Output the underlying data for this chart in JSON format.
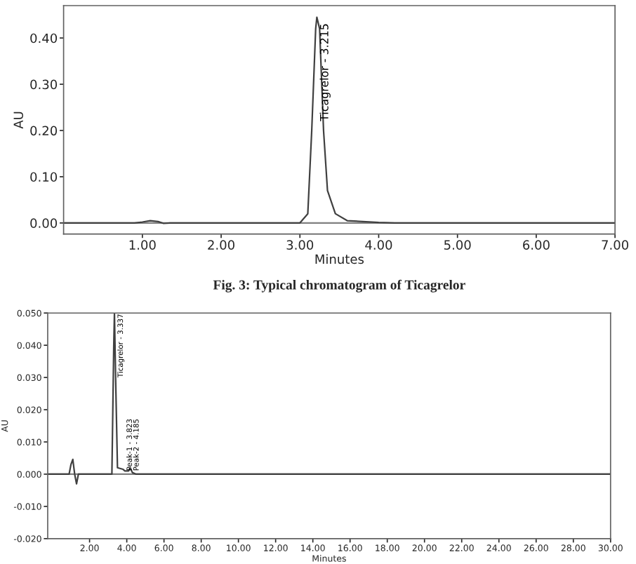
{
  "chart_data": [
    {
      "type": "line",
      "xlabel": "Minutes",
      "ylabel": "AU",
      "xlim": [
        0,
        7
      ],
      "ylim": [
        -0.024,
        0.47
      ],
      "xticks": [
        {
          "value": 1,
          "label": "1.00"
        },
        {
          "value": 2,
          "label": "2.00"
        },
        {
          "value": 3,
          "label": "3.00"
        },
        {
          "value": 4,
          "label": "4.00"
        },
        {
          "value": 5,
          "label": "5.00"
        },
        {
          "value": 6,
          "label": "6.00"
        },
        {
          "value": 7,
          "label": "7.00"
        }
      ],
      "yticks": [
        {
          "value": 0,
          "label": "0.00"
        },
        {
          "value": 0.1,
          "label": "0.10"
        },
        {
          "value": 0.2,
          "label": "0.20"
        },
        {
          "value": 0.3,
          "label": "0.30"
        },
        {
          "value": 0.4,
          "label": "0.40"
        }
      ],
      "grid": false,
      "legend": false,
      "marker": "none",
      "line_style": "solid",
      "ref_lines": [
        {
          "axis": "y",
          "value": 0,
          "color": "#808080"
        }
      ],
      "series": [
        {
          "color": "#404040",
          "x": [
            0,
            0.9,
            1.0,
            1.1,
            1.2,
            1.27,
            1.35,
            3.0,
            3.1,
            3.15,
            3.2,
            3.215,
            3.25,
            3.3,
            3.35,
            3.45,
            3.6,
            4.0,
            4.2,
            7.0
          ],
          "values": [
            0,
            0,
            0.002,
            0.005,
            0.003,
            -0.001,
            0,
            0,
            0.02,
            0.2,
            0.42,
            0.445,
            0.42,
            0.2,
            0.07,
            0.02,
            0.005,
            0.001,
            0,
            0
          ]
        }
      ],
      "annotations": [
        {
          "text": "Ticagrelor - 3.215",
          "x": 3.215,
          "y": 0.22
        },
        "Fig. 3: Typical chromatogram of Ticagrelor"
      ]
    },
    {
      "type": "line",
      "xlabel": "Minutes",
      "ylabel": "AU",
      "xlim": [
        -0.25,
        30
      ],
      "ylim": [
        -0.02,
        0.05
      ],
      "xticks": [
        {
          "value": 2,
          "label": "2.00"
        },
        {
          "value": 4,
          "label": "4.00"
        },
        {
          "value": 6,
          "label": "6.00"
        },
        {
          "value": 8,
          "label": "8.00"
        },
        {
          "value": 10,
          "label": "10.00"
        },
        {
          "value": 12,
          "label": "12.00"
        },
        {
          "value": 14,
          "label": "14.00"
        },
        {
          "value": 16,
          "label": "16.00"
        },
        {
          "value": 18,
          "label": "18.00"
        },
        {
          "value": 20,
          "label": "20.00"
        },
        {
          "value": 22,
          "label": "22.00"
        },
        {
          "value": 24,
          "label": "24.00"
        },
        {
          "value": 26,
          "label": "26.00"
        },
        {
          "value": 28,
          "label": "28.00"
        },
        {
          "value": 30,
          "label": "30.00"
        }
      ],
      "yticks": [
        {
          "value": -0.02,
          "label": "-0.020"
        },
        {
          "value": -0.01,
          "label": "-0.010"
        },
        {
          "value": 0,
          "label": "0.000"
        },
        {
          "value": 0.01,
          "label": "0.010"
        },
        {
          "value": 0.02,
          "label": "0.020"
        },
        {
          "value": 0.03,
          "label": "0.030"
        },
        {
          "value": 0.04,
          "label": "0.040"
        },
        {
          "value": 0.05,
          "label": "0.050"
        }
      ],
      "grid": false,
      "legend": false,
      "marker": "none",
      "line_style": "solid",
      "ref_lines": [
        {
          "axis": "y",
          "value": 0,
          "color": "#808080"
        }
      ],
      "series": [
        {
          "color": "#404040",
          "x": [
            -0.25,
            0.9,
            1.0,
            1.1,
            1.2,
            1.3,
            1.4,
            3.2,
            3.3,
            3.337,
            3.4,
            3.5,
            3.8,
            3.9,
            4.1,
            4.185,
            4.3,
            4.5,
            30
          ],
          "values": [
            0,
            0,
            0.003,
            0.0046,
            0,
            -0.003,
            0,
            0,
            0.04,
            0.05,
            0.03,
            0.002,
            0.0015,
            0.001,
            0.001,
            0.002,
            0.0005,
            0,
            0
          ]
        }
      ],
      "annotations": [
        {
          "text": "Ticagrelor - 3.337",
          "x": 3.337,
          "y": 0.03
        },
        {
          "text": "Peak-1 - 3.823",
          "x": 3.823,
          "y": 0.001
        },
        {
          "text": "Peak-2 - 4.185",
          "x": 4.185,
          "y": 0.001
        }
      ]
    }
  ]
}
